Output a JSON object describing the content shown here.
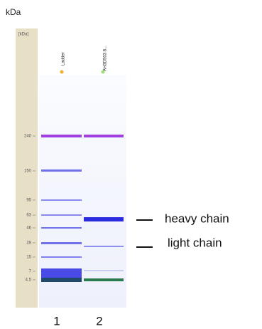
{
  "header": {
    "unit": "kDa"
  },
  "gel": {
    "axis_title": "[kDa]",
    "markers": [
      "240",
      "150",
      "95",
      "63",
      "46",
      "28",
      "15",
      "7",
      "4.5"
    ],
    "lanes": [
      {
        "name": "Ladder",
        "number": "1"
      },
      {
        "name": "AH3D503 8...",
        "number": "2"
      }
    ]
  },
  "annotations": [
    "heavy chain",
    "light chain"
  ]
}
